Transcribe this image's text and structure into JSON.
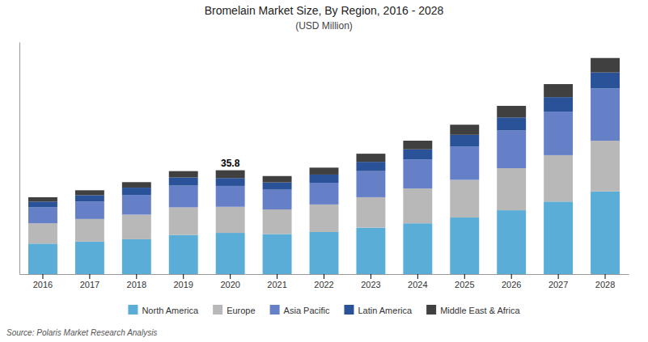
{
  "chart_data": {
    "type": "bar",
    "stacked": true,
    "title": "Bromelain Market Size, By Region, 2016 - 2028",
    "subtitle": "(USD Million)",
    "categories": [
      "2016",
      "2017",
      "2018",
      "2019",
      "2020",
      "2021",
      "2022",
      "2023",
      "2024",
      "2025",
      "2026",
      "2027",
      "2028"
    ],
    "series": [
      {
        "name": "North America",
        "color": "#5aadd6",
        "values": [
          10.5,
          11.2,
          12.0,
          13.5,
          14.2,
          13.8,
          14.5,
          16.0,
          17.5,
          19.5,
          22.0,
          25.0,
          28.5
        ]
      },
      {
        "name": "Europe",
        "color": "#b8b8b8",
        "values": [
          7.0,
          7.8,
          8.5,
          9.5,
          9.0,
          8.5,
          9.5,
          10.5,
          12.0,
          13.0,
          14.5,
          16.0,
          17.5
        ]
      },
      {
        "name": "Asia Pacific",
        "color": "#6680c8",
        "values": [
          5.5,
          6.0,
          6.8,
          7.5,
          7.2,
          6.8,
          7.5,
          9.0,
          10.0,
          11.5,
          13.0,
          15.0,
          18.0
        ]
      },
      {
        "name": "Latin America",
        "color": "#2a5298",
        "values": [
          2.0,
          2.2,
          2.5,
          2.8,
          2.7,
          2.5,
          2.8,
          3.2,
          3.5,
          4.0,
          4.5,
          5.0,
          5.5
        ]
      },
      {
        "name": "Middle East & Africa",
        "color": "#404040",
        "values": [
          1.5,
          1.7,
          1.9,
          2.2,
          2.7,
          2.2,
          2.4,
          2.8,
          3.0,
          3.5,
          4.0,
          4.5,
          5.0
        ]
      }
    ],
    "annotations": [
      {
        "category": "2020",
        "text": "35.8"
      }
    ],
    "source": "Source: Polaris Market Research Analysis",
    "ylim": [
      0,
      80
    ],
    "tick_labels": "x",
    "grid": false,
    "legend": "bottom"
  }
}
